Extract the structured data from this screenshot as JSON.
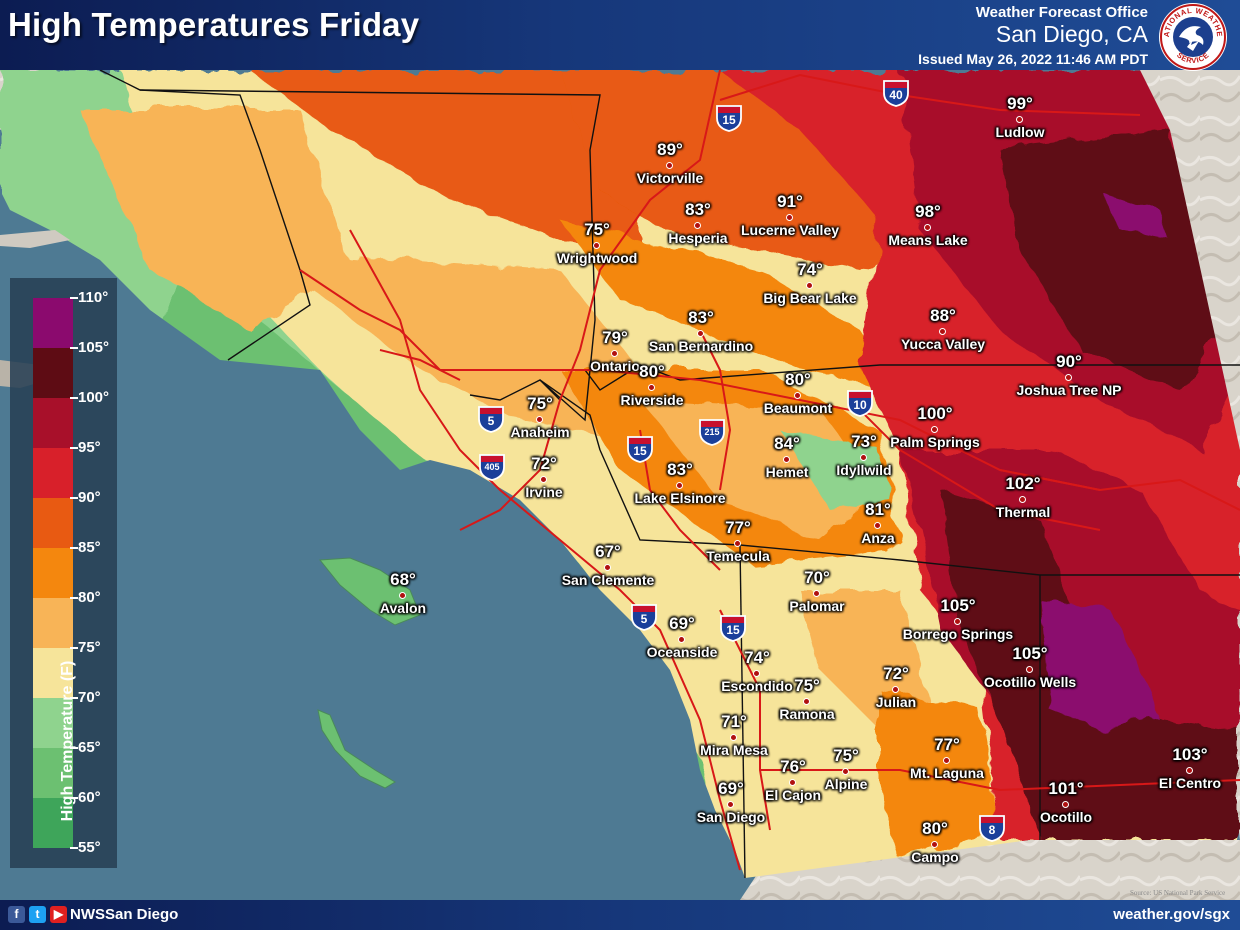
{
  "header": {
    "title": "High Temperatures Friday",
    "office_line1": "Weather Forecast Office",
    "office_line2": "San Diego, CA",
    "issued": "Issued May 26, 2022 11:46 AM PDT"
  },
  "seal": {
    "text_top": "NATIONAL WEATHER",
    "text_bottom": "SERVICE"
  },
  "legend": {
    "title": "High Temperature (F)",
    "ticks": [
      "110°",
      "105°",
      "100°",
      "95°",
      "90°",
      "85°",
      "80°",
      "75°",
      "70°",
      "65°",
      "60°",
      "55°"
    ],
    "colors": [
      "#8b0a6e",
      "#5e0c14",
      "#a8102a",
      "#d8202a",
      "#e85a12",
      "#f4870e",
      "#f8b457",
      "#f6e49a",
      "#8fd38e",
      "#6cc071",
      "#3ea55a"
    ]
  },
  "stations": [
    {
      "name": "Victorville",
      "temp": "89°"
    },
    {
      "name": "Hesperia",
      "temp": "83°"
    },
    {
      "name": "Lucerne Valley",
      "temp": "91°"
    },
    {
      "name": "Means Lake",
      "temp": "98°"
    },
    {
      "name": "Ludlow",
      "temp": "99°"
    },
    {
      "name": "Wrightwood",
      "temp": "75°"
    },
    {
      "name": "Big Bear Lake",
      "temp": "74°"
    },
    {
      "name": "San Bernardino",
      "temp": "83°"
    },
    {
      "name": "Yucca Valley",
      "temp": "88°"
    },
    {
      "name": "Ontario",
      "temp": "79°"
    },
    {
      "name": "Riverside",
      "temp": "80°"
    },
    {
      "name": "Joshua Tree NP",
      "temp": "90°"
    },
    {
      "name": "Beaumont",
      "temp": "80°"
    },
    {
      "name": "Anaheim",
      "temp": "75°"
    },
    {
      "name": "Palm Springs",
      "temp": "100°"
    },
    {
      "name": "Hemet",
      "temp": "84°"
    },
    {
      "name": "Idyllwild",
      "temp": "73°"
    },
    {
      "name": "Irvine",
      "temp": "72°"
    },
    {
      "name": "Lake Elsinore",
      "temp": "83°"
    },
    {
      "name": "Thermal",
      "temp": "102°"
    },
    {
      "name": "Anza",
      "temp": "81°"
    },
    {
      "name": "Temecula",
      "temp": "77°"
    },
    {
      "name": "San Clemente",
      "temp": "67°"
    },
    {
      "name": "Palomar",
      "temp": "70°"
    },
    {
      "name": "Avalon",
      "temp": "68°"
    },
    {
      "name": "Borrego Springs",
      "temp": "105°"
    },
    {
      "name": "Oceanside",
      "temp": "69°"
    },
    {
      "name": "Ocotillo Wells",
      "temp": "105°"
    },
    {
      "name": "Escondido",
      "temp": "74°"
    },
    {
      "name": "Ramona",
      "temp": "75°"
    },
    {
      "name": "Julian",
      "temp": "72°"
    },
    {
      "name": "Mira Mesa",
      "temp": "71°"
    },
    {
      "name": "Mt. Laguna",
      "temp": "77°"
    },
    {
      "name": "El Centro",
      "temp": "103°"
    },
    {
      "name": "El Cajon",
      "temp": "76°"
    },
    {
      "name": "Alpine",
      "temp": "75°"
    },
    {
      "name": "Ocotillo",
      "temp": "101°"
    },
    {
      "name": "San Diego",
      "temp": "69°"
    },
    {
      "name": "Campo",
      "temp": "80°"
    }
  ],
  "highway_shields": [
    "15",
    "40",
    "5",
    "405",
    "15",
    "215",
    "10",
    "5",
    "15",
    "8"
  ],
  "footer": {
    "social_icons": [
      "facebook-icon",
      "twitter-icon",
      "youtube-icon"
    ],
    "handle": "NWSSan Diego",
    "website": "weather.gov/sgx",
    "credit": "Source: US National Park Service"
  }
}
